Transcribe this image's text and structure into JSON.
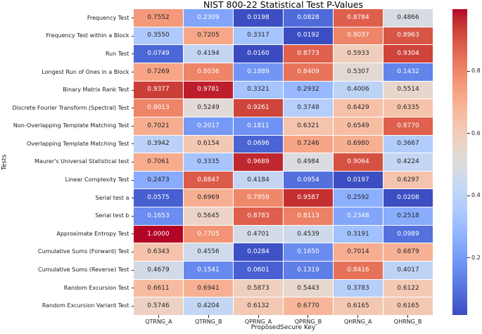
{
  "chart_data": {
    "type": "heatmap",
    "title": "NIST 800-22 Statistical Test P-Values",
    "xlabel": "ProposedSecure Key",
    "ylabel": "Tests",
    "columns": [
      "QTRNG_A",
      "QTRNG_B",
      "QPRNG_A",
      "QPRNG_B",
      "QHRNG_A",
      "QHRNG_B"
    ],
    "rows": [
      "Frequency Test",
      "Frequency Test within a Block",
      "Run Test",
      "Longest Run of Ones in a Block",
      "Binary Matrix Rank Test",
      "Discrete Fourier Transform (Spectral) Test",
      "Non-Overlapping Template Matching Test",
      "Overlapping Template Matching Test",
      "Maurer's Universal Statistical test",
      "Linear Complexity Test",
      "Serial test a",
      "Serial test b",
      "Approximate Entropy Test",
      "Cumulative Sums (Forward) Test",
      "Cumulative Sums (Reverse) Test",
      "Random Excursion Test",
      "Random Excursion Variant Test"
    ],
    "values": [
      [
        0.7552,
        0.2309,
        0.0198,
        0.0828,
        0.8784,
        0.4866
      ],
      [
        0.355,
        0.7205,
        0.3317,
        0.0192,
        0.8037,
        0.8963
      ],
      [
        0.0749,
        0.4194,
        0.016,
        0.8773,
        0.5933,
        0.9304
      ],
      [
        0.7269,
        0.8036,
        0.1889,
        0.8409,
        0.5307,
        0.1432
      ],
      [
        0.9377,
        0.9781,
        0.3321,
        0.2932,
        0.4006,
        0.5514
      ],
      [
        0.8013,
        0.5249,
        0.9261,
        0.3748,
        0.6429,
        0.6335
      ],
      [
        0.7021,
        0.2017,
        0.1811,
        0.6321,
        0.6549,
        0.877
      ],
      [
        0.3942,
        0.6154,
        0.0696,
        0.7246,
        0.698,
        0.3667
      ],
      [
        0.7061,
        0.3335,
        0.9689,
        0.4984,
        0.9064,
        0.4224
      ],
      [
        0.2473,
        0.8847,
        0.4184,
        0.0954,
        0.0197,
        0.6297
      ],
      [
        0.0575,
        0.6969,
        0.7959,
        0.9587,
        0.2592,
        0.0208
      ],
      [
        0.1653,
        0.5645,
        0.8783,
        0.8113,
        0.2348,
        0.2518
      ],
      [
        1.0,
        0.7705,
        0.4701,
        0.4539,
        0.3191,
        0.0989
      ],
      [
        0.6343,
        0.4556,
        0.0284,
        0.165,
        0.7014,
        0.6879
      ],
      [
        0.4679,
        0.1541,
        0.0601,
        0.1319,
        0.8416,
        0.4017
      ],
      [
        0.6611,
        0.6941,
        0.5873,
        0.5443,
        0.3783,
        0.6122
      ],
      [
        0.5746,
        0.4204,
        0.6132,
        0.677,
        0.6165,
        0.6165
      ]
    ],
    "value_decimals": 4,
    "vmin": 0.016,
    "vmax": 1.0,
    "colormap": "coolwarm",
    "colorbar_ticks": [
      0.2,
      0.4,
      0.6,
      0.8
    ],
    "legend_position": "right",
    "grid_lines": true,
    "colors": {
      "colorbar_top": "#b40426",
      "colorbar_mid": "#dddcdc",
      "colorbar_bottom": "#3b4cc0",
      "annotation_dark": "#262626",
      "annotation_light": "#ffffff",
      "background": "#ffffff"
    }
  }
}
